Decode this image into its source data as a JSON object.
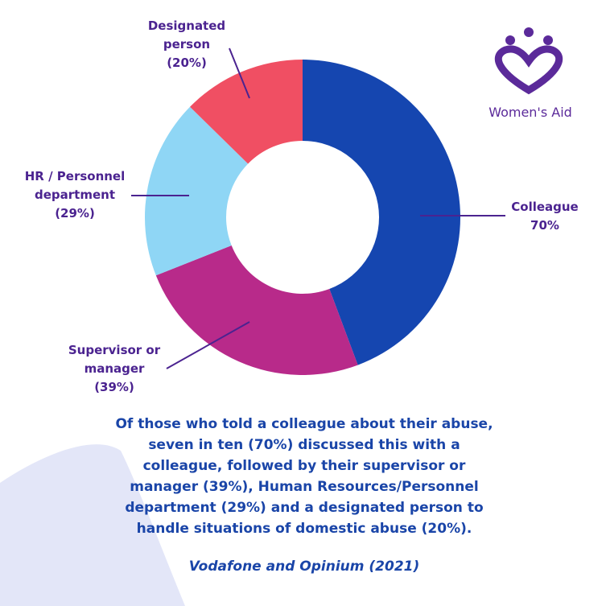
{
  "chart_data": {
    "type": "donut",
    "categories": [
      "Colleague",
      "Supervisor or manager",
      "HR / Personnel department",
      "Designated person"
    ],
    "values": [
      70,
      39,
      29,
      20
    ],
    "value_labels": [
      "70%",
      "(39%)",
      "(29%)",
      "(20%)"
    ],
    "colors": [
      "#1546b0",
      "#b82a8a",
      "#8fd6f5",
      "#f04f63"
    ],
    "caption": "Of those who told a colleague about their abuse, seven in ten (70%) discussed this with a colleague, followed by their supervisor or manager (39%), Human Resources/Personnel department (29%) and a designated person to handle situations of domestic abuse (20%).",
    "source": "Vodafone and Opinium (2021)",
    "brand": "Women's Aid"
  }
}
